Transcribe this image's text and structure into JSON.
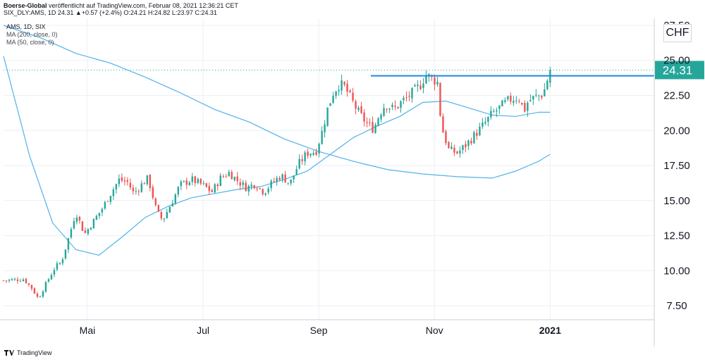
{
  "header": {
    "line1_author": "Boerse-Global",
    "line1_text": " veröffentlicht auf TradingView.com, Februar 08, 2021 12:36:21 CET",
    "line2_text": "SIX_DLY:AMS, 1D  24.31  ▲+0.57 (+2.4%)  O:24.21  H:24.82  L:23.97  C:24.31"
  },
  "legend": {
    "symbol": "AMS, 1D, SIX",
    "ma200": "MA (200, close, 0)",
    "ma50": "MA (50, close, 0)"
  },
  "currency_label": "CHF",
  "footer": {
    "brand": "TradingView"
  },
  "colors": {
    "up": "#26a69a",
    "down": "#ef5350",
    "ma": "#4fb3e8",
    "resistance": "#1e88e5",
    "last_price": "#26a69a",
    "grid": "#eceff4"
  },
  "chart_data": {
    "type": "candlestick",
    "symbol": "SIX_DLY:AMS",
    "interval": "1D",
    "currency": "CHF",
    "ylim": [
      6.5,
      28.0
    ],
    "yticks": [
      "27.50",
      "25.00",
      "22.50",
      "20.00",
      "17.50",
      "15.00",
      "12.50",
      "10.00",
      "7.50"
    ],
    "ytick_values": [
      27.5,
      25.0,
      22.5,
      20.0,
      17.5,
      15.0,
      12.5,
      10.0,
      7.5
    ],
    "xlabels": [
      {
        "label": "Mai",
        "month": 4.0
      },
      {
        "label": "Jul",
        "month": 6.0
      },
      {
        "label": "Sep",
        "month": 8.0
      },
      {
        "label": "Nov",
        "month": 10.0
      },
      {
        "label": "2021",
        "month": 12.0
      }
    ],
    "xrange": [
      2.55,
      13.8
    ],
    "last_price": 24.31,
    "last_price_label": "24.31",
    "resistance_level": 23.9,
    "resistance_from": 8.9,
    "price_path": [
      [
        2.55,
        9.3
      ],
      [
        2.9,
        9.4
      ],
      [
        3.05,
        8.7
      ],
      [
        3.15,
        8.0
      ],
      [
        3.3,
        9.2
      ],
      [
        3.45,
        10.3
      ],
      [
        3.55,
        10.6
      ],
      [
        3.7,
        12.7
      ],
      [
        3.8,
        14.2
      ],
      [
        3.95,
        12.6
      ],
      [
        4.05,
        13.2
      ],
      [
        4.25,
        14.4
      ],
      [
        4.4,
        15.5
      ],
      [
        4.55,
        16.5
      ],
      [
        4.7,
        16.3
      ],
      [
        4.8,
        15.5
      ],
      [
        4.95,
        16.2
      ],
      [
        5.05,
        16.6
      ],
      [
        5.2,
        14.2
      ],
      [
        5.3,
        13.6
      ],
      [
        5.45,
        14.8
      ],
      [
        5.6,
        16.1
      ],
      [
        5.8,
        16.5
      ],
      [
        6.0,
        16.1
      ],
      [
        6.15,
        15.6
      ],
      [
        6.3,
        16.6
      ],
      [
        6.45,
        17.0
      ],
      [
        6.6,
        16.4
      ],
      [
        6.75,
        15.9
      ],
      [
        6.9,
        16.2
      ],
      [
        7.05,
        15.6
      ],
      [
        7.2,
        16.3
      ],
      [
        7.35,
        16.8
      ],
      [
        7.5,
        16.2
      ],
      [
        7.65,
        17.6
      ],
      [
        7.8,
        18.4
      ],
      [
        7.95,
        18.5
      ],
      [
        8.05,
        19.8
      ],
      [
        8.15,
        21.5
      ],
      [
        8.25,
        22.7
      ],
      [
        8.35,
        23.3
      ],
      [
        8.45,
        23.1
      ],
      [
        8.55,
        22.3
      ],
      [
        8.7,
        21.2
      ],
      [
        8.85,
        20.4
      ],
      [
        8.95,
        20.1
      ],
      [
        9.05,
        21.2
      ],
      [
        9.15,
        21.9
      ],
      [
        9.3,
        21.5
      ],
      [
        9.45,
        22.1
      ],
      [
        9.6,
        22.6
      ],
      [
        9.75,
        23.2
      ],
      [
        9.85,
        24.0
      ],
      [
        9.95,
        23.7
      ],
      [
        10.05,
        23.5
      ],
      [
        10.12,
        20.3
      ],
      [
        10.25,
        18.6
      ],
      [
        10.4,
        18.4
      ],
      [
        10.55,
        19.0
      ],
      [
        10.7,
        19.7
      ],
      [
        10.85,
        20.4
      ],
      [
        11.0,
        21.2
      ],
      [
        11.15,
        21.7
      ],
      [
        11.3,
        22.2
      ],
      [
        11.45,
        22.4
      ],
      [
        11.55,
        21.4
      ],
      [
        11.62,
        22.1
      ],
      [
        11.75,
        22.4
      ],
      [
        11.88,
        22.6
      ],
      [
        12.0,
        24.31
      ]
    ],
    "ma50": [
      [
        2.55,
        25.3
      ],
      [
        3.0,
        18.2
      ],
      [
        3.4,
        13.4
      ],
      [
        3.8,
        11.5
      ],
      [
        4.2,
        11.1
      ],
      [
        4.6,
        12.4
      ],
      [
        5.0,
        13.8
      ],
      [
        5.4,
        14.6
      ],
      [
        5.8,
        15.2
      ],
      [
        6.2,
        15.5
      ],
      [
        6.6,
        15.8
      ],
      [
        7.0,
        16.0
      ],
      [
        7.4,
        16.5
      ],
      [
        7.8,
        17.1
      ],
      [
        8.2,
        18.3
      ],
      [
        8.6,
        19.5
      ],
      [
        9.0,
        20.3
      ],
      [
        9.4,
        21.0
      ],
      [
        9.8,
        22.0
      ],
      [
        10.2,
        22.1
      ],
      [
        10.6,
        21.6
      ],
      [
        11.0,
        21.1
      ],
      [
        11.4,
        21.0
      ],
      [
        11.8,
        21.3
      ],
      [
        12.0,
        21.3
      ]
    ],
    "ma200": [
      [
        2.55,
        27.5
      ],
      [
        3.2,
        26.6
      ],
      [
        3.8,
        25.5
      ],
      [
        4.4,
        24.8
      ],
      [
        5.0,
        23.8
      ],
      [
        5.6,
        22.7
      ],
      [
        6.2,
        21.5
      ],
      [
        6.8,
        20.6
      ],
      [
        7.4,
        19.4
      ],
      [
        8.0,
        18.5
      ],
      [
        8.6,
        17.8
      ],
      [
        9.2,
        17.2
      ],
      [
        9.8,
        16.9
      ],
      [
        10.4,
        16.7
      ],
      [
        11.0,
        16.6
      ],
      [
        11.4,
        17.1
      ],
      [
        11.8,
        17.8
      ],
      [
        12.0,
        18.3
      ]
    ]
  }
}
